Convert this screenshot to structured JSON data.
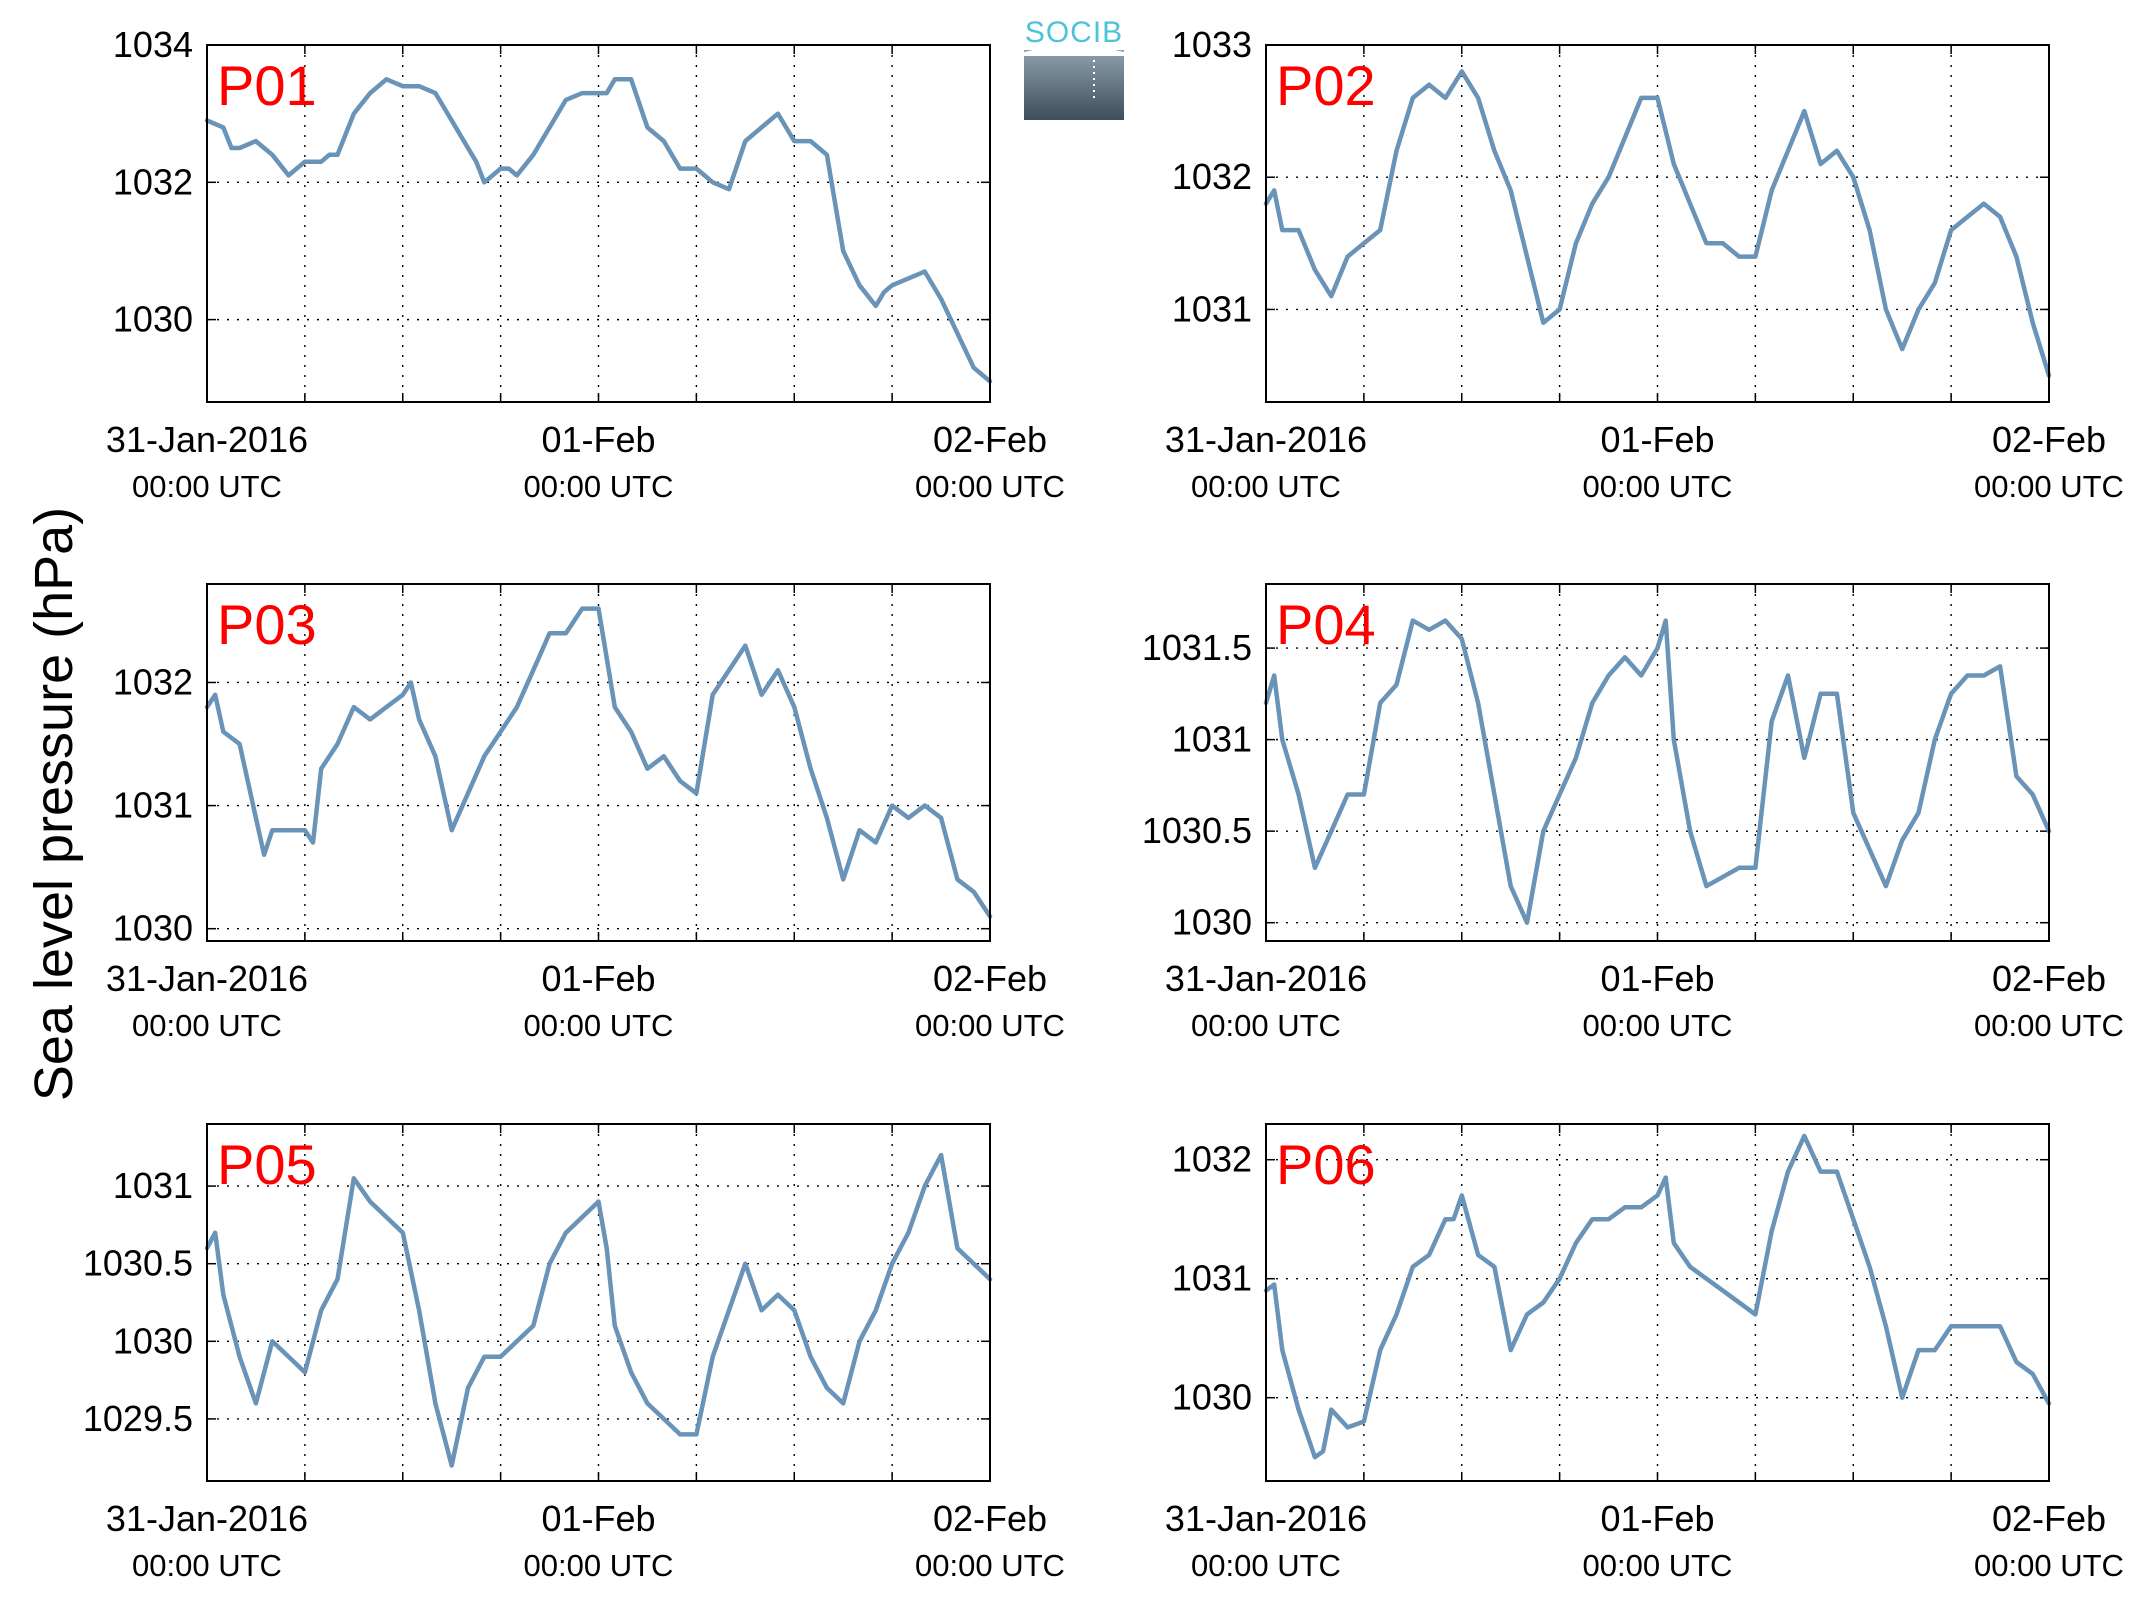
{
  "figure": {
    "ylabel": "Sea level pressure (hPa)",
    "logo_text": "SOCIB"
  },
  "colors": {
    "series": "#6a93b8",
    "panel_label": "#ff0000",
    "axis": "#000000"
  },
  "chart_data": [
    {
      "type": "line",
      "label": "P01",
      "xlim": [
        0,
        48
      ],
      "ylim": [
        1028.8,
        1034
      ],
      "yticks": [
        1030,
        1032,
        1034
      ],
      "xticks": [
        {
          "x": 0,
          "line1": "31-Jan-2016",
          "line2": "00:00 UTC"
        },
        {
          "x": 24,
          "line1": "01-Feb",
          "line2": "00:00 UTC"
        },
        {
          "x": 48,
          "line1": "02-Feb",
          "line2": "00:00 UTC"
        }
      ],
      "xminor": [
        6,
        12,
        18,
        30,
        36,
        42
      ],
      "x": [
        0,
        1,
        1.5,
        2,
        3,
        3.5,
        4,
        5,
        6,
        7,
        7.5,
        8,
        9,
        10,
        11,
        12,
        13,
        14,
        15,
        16,
        16.5,
        17,
        18,
        18.5,
        19,
        20,
        21,
        22,
        23,
        24,
        24.5,
        25,
        26,
        27,
        28,
        29,
        30,
        30.5,
        31,
        32,
        33,
        34,
        34.5,
        35,
        36,
        37,
        38,
        39,
        40,
        41,
        41.5,
        42,
        43,
        44,
        45,
        46,
        47,
        48
      ],
      "values": [
        1032.9,
        1032.8,
        1032.5,
        1032.5,
        1032.6,
        1032.5,
        1032.4,
        1032.1,
        1032.3,
        1032.3,
        1032.4,
        1032.4,
        1033.0,
        1033.3,
        1033.5,
        1033.4,
        1033.4,
        1033.3,
        1032.9,
        1032.5,
        1032.3,
        1032.0,
        1032.2,
        1032.2,
        1032.1,
        1032.4,
        1032.8,
        1033.2,
        1033.3,
        1033.3,
        1033.3,
        1033.5,
        1033.5,
        1032.8,
        1032.6,
        1032.2,
        1032.2,
        1032.1,
        1032.0,
        1031.9,
        1032.6,
        1032.8,
        1032.9,
        1033.0,
        1032.6,
        1032.6,
        1032.4,
        1031.0,
        1030.5,
        1030.2,
        1030.4,
        1030.5,
        1030.6,
        1030.7,
        1030.3,
        1029.8,
        1029.3,
        1029.1
      ]
    },
    {
      "type": "line",
      "label": "P02",
      "xlim": [
        0,
        48
      ],
      "ylim": [
        1030.3,
        1033
      ],
      "yticks": [
        1031,
        1032,
        1033
      ],
      "xticks": [
        {
          "x": 0,
          "line1": "31-Jan-2016",
          "line2": "00:00 UTC"
        },
        {
          "x": 24,
          "line1": "01-Feb",
          "line2": "00:00 UTC"
        },
        {
          "x": 48,
          "line1": "02-Feb",
          "line2": "00:00 UTC"
        }
      ],
      "xminor": [
        6,
        12,
        18,
        30,
        36,
        42
      ],
      "x": [
        0,
        0.5,
        1,
        2,
        3,
        4,
        5,
        6,
        7,
        8,
        9,
        10,
        11,
        11.5,
        12,
        13,
        14,
        15,
        16,
        17,
        18,
        19,
        20,
        21,
        22,
        23,
        24,
        25,
        26,
        27,
        28,
        29,
        30,
        31,
        32,
        33,
        34,
        35,
        36,
        37,
        38,
        39,
        40,
        41,
        42,
        43,
        44,
        45,
        46,
        47,
        48
      ],
      "values": [
        1031.8,
        1031.9,
        1031.6,
        1031.6,
        1031.3,
        1031.1,
        1031.4,
        1031.5,
        1031.6,
        1032.2,
        1032.6,
        1032.7,
        1032.6,
        1032.7,
        1032.8,
        1032.6,
        1032.2,
        1031.9,
        1031.4,
        1030.9,
        1031.0,
        1031.5,
        1031.8,
        1032.0,
        1032.3,
        1032.6,
        1032.6,
        1032.1,
        1031.8,
        1031.5,
        1031.5,
        1031.4,
        1031.4,
        1031.9,
        1032.2,
        1032.5,
        1032.1,
        1032.2,
        1032.0,
        1031.6,
        1031.0,
        1030.7,
        1031.0,
        1031.2,
        1031.6,
        1031.7,
        1031.8,
        1031.7,
        1031.4,
        1030.9,
        1030.5
      ]
    },
    {
      "type": "line",
      "label": "P03",
      "xlim": [
        0,
        48
      ],
      "ylim": [
        1029.9,
        1032.8
      ],
      "yticks": [
        1030,
        1031,
        1032
      ],
      "xticks": [
        {
          "x": 0,
          "line1": "31-Jan-2016",
          "line2": "00:00 UTC"
        },
        {
          "x": 24,
          "line1": "01-Feb",
          "line2": "00:00 UTC"
        },
        {
          "x": 48,
          "line1": "02-Feb",
          "line2": "00:00 UTC"
        }
      ],
      "xminor": [
        6,
        12,
        18,
        30,
        36,
        42
      ],
      "x": [
        0,
        0.5,
        1,
        2,
        3,
        3.5,
        4,
        5,
        6,
        6.5,
        7,
        8,
        9,
        10,
        11,
        12,
        12.5,
        13,
        14,
        15,
        16,
        17,
        18,
        19,
        20,
        21,
        22,
        23,
        24,
        24.5,
        25,
        26,
        27,
        28,
        29,
        30,
        31,
        32,
        33,
        34,
        35,
        36,
        37,
        38,
        39,
        40,
        41,
        42,
        43,
        44,
        45,
        46,
        47,
        48
      ],
      "values": [
        1031.8,
        1031.9,
        1031.6,
        1031.5,
        1030.9,
        1030.6,
        1030.8,
        1030.8,
        1030.8,
        1030.7,
        1031.3,
        1031.5,
        1031.8,
        1031.7,
        1031.8,
        1031.9,
        1032.0,
        1031.7,
        1031.4,
        1030.8,
        1031.1,
        1031.4,
        1031.6,
        1031.8,
        1032.1,
        1032.4,
        1032.4,
        1032.6,
        1032.6,
        1032.2,
        1031.8,
        1031.6,
        1031.3,
        1031.4,
        1031.2,
        1031.1,
        1031.9,
        1032.1,
        1032.3,
        1031.9,
        1032.1,
        1031.8,
        1031.3,
        1030.9,
        1030.4,
        1030.8,
        1030.7,
        1031.0,
        1030.9,
        1031.0,
        1030.9,
        1030.4,
        1030.3,
        1030.1
      ]
    },
    {
      "type": "line",
      "label": "P04",
      "xlim": [
        0,
        48
      ],
      "ylim": [
        1029.9,
        1031.85
      ],
      "yticks": [
        1030,
        1030.5,
        1031,
        1031.5
      ],
      "xticks": [
        {
          "x": 0,
          "line1": "31-Jan-2016",
          "line2": "00:00 UTC"
        },
        {
          "x": 24,
          "line1": "01-Feb",
          "line2": "00:00 UTC"
        },
        {
          "x": 48,
          "line1": "02-Feb",
          "line2": "00:00 UTC"
        }
      ],
      "xminor": [
        6,
        12,
        18,
        30,
        36,
        42
      ],
      "x": [
        0,
        0.5,
        1,
        2,
        3,
        4,
        5,
        6,
        7,
        8,
        9,
        10,
        11,
        12,
        13,
        14,
        15,
        16,
        17,
        18,
        18.5,
        19,
        20,
        21,
        22,
        23,
        24,
        24.5,
        25,
        26,
        27,
        28,
        29,
        30,
        31,
        32,
        33,
        34,
        35,
        36,
        37,
        38,
        39,
        40,
        41,
        42,
        43,
        44,
        45,
        46,
        47,
        48
      ],
      "values": [
        1031.2,
        1031.35,
        1031.0,
        1030.7,
        1030.3,
        1030.5,
        1030.7,
        1030.7,
        1031.2,
        1031.3,
        1031.65,
        1031.6,
        1031.65,
        1031.55,
        1031.2,
        1030.7,
        1030.2,
        1030.0,
        1030.5,
        1030.7,
        1030.8,
        1030.9,
        1031.2,
        1031.35,
        1031.45,
        1031.35,
        1031.5,
        1031.65,
        1031.0,
        1030.5,
        1030.2,
        1030.25,
        1030.3,
        1030.3,
        1031.1,
        1031.35,
        1030.9,
        1031.25,
        1031.25,
        1030.6,
        1030.4,
        1030.2,
        1030.45,
        1030.6,
        1031.0,
        1031.25,
        1031.35,
        1031.35,
        1031.4,
        1030.8,
        1030.7,
        1030.5
      ]
    },
    {
      "type": "line",
      "label": "P05",
      "xlim": [
        0,
        48
      ],
      "ylim": [
        1029.1,
        1031.4
      ],
      "yticks": [
        1029.5,
        1030,
        1030.5,
        1031
      ],
      "xticks": [
        {
          "x": 0,
          "line1": "31-Jan-2016",
          "line2": "00:00 UTC"
        },
        {
          "x": 24,
          "line1": "01-Feb",
          "line2": "00:00 UTC"
        },
        {
          "x": 48,
          "line1": "02-Feb",
          "line2": "00:00 UTC"
        }
      ],
      "xminor": [
        6,
        12,
        18,
        30,
        36,
        42
      ],
      "x": [
        0,
        0.5,
        1,
        2,
        3,
        4,
        5,
        6,
        7,
        8,
        9,
        10,
        11,
        12,
        13,
        14,
        15,
        16,
        17,
        18,
        19,
        20,
        21,
        22,
        23,
        24,
        24.5,
        25,
        26,
        27,
        28,
        29,
        30,
        31,
        32,
        33,
        34,
        35,
        36,
        37,
        38,
        39,
        40,
        41,
        42,
        43,
        44,
        45,
        46,
        47,
        48
      ],
      "values": [
        1030.6,
        1030.7,
        1030.3,
        1029.9,
        1029.6,
        1030.0,
        1029.9,
        1029.8,
        1030.2,
        1030.4,
        1031.05,
        1030.9,
        1030.8,
        1030.7,
        1030.2,
        1029.6,
        1029.2,
        1029.7,
        1029.9,
        1029.9,
        1030.0,
        1030.1,
        1030.5,
        1030.7,
        1030.8,
        1030.9,
        1030.6,
        1030.1,
        1029.8,
        1029.6,
        1029.5,
        1029.4,
        1029.4,
        1029.9,
        1030.2,
        1030.5,
        1030.2,
        1030.3,
        1030.2,
        1029.9,
        1029.7,
        1029.6,
        1030.0,
        1030.2,
        1030.5,
        1030.7,
        1031.0,
        1031.2,
        1030.6,
        1030.5,
        1030.4
      ]
    },
    {
      "type": "line",
      "label": "P06",
      "xlim": [
        0,
        48
      ],
      "ylim": [
        1029.3,
        1032.3
      ],
      "yticks": [
        1030,
        1031,
        1032
      ],
      "xticks": [
        {
          "x": 0,
          "line1": "31-Jan-2016",
          "line2": "00:00 UTC"
        },
        {
          "x": 24,
          "line1": "01-Feb",
          "line2": "00:00 UTC"
        },
        {
          "x": 48,
          "line1": "02-Feb",
          "line2": "00:00 UTC"
        }
      ],
      "xminor": [
        6,
        12,
        18,
        30,
        36,
        42
      ],
      "x": [
        0,
        0.5,
        1,
        2,
        3,
        3.5,
        4,
        5,
        6,
        7,
        8,
        9,
        10,
        11,
        11.5,
        12,
        13,
        14,
        15,
        16,
        17,
        18,
        19,
        20,
        21,
        22,
        23,
        24,
        24.5,
        25,
        26,
        27,
        28,
        29,
        30,
        31,
        32,
        33,
        34,
        35,
        36,
        37,
        38,
        39,
        40,
        41,
        42,
        43,
        44,
        45,
        46,
        47,
        48
      ],
      "values": [
        1030.9,
        1030.95,
        1030.4,
        1029.9,
        1029.5,
        1029.55,
        1029.9,
        1029.75,
        1029.8,
        1030.4,
        1030.7,
        1031.1,
        1031.2,
        1031.5,
        1031.5,
        1031.7,
        1031.2,
        1031.1,
        1030.4,
        1030.7,
        1030.8,
        1031.0,
        1031.3,
        1031.5,
        1031.5,
        1031.6,
        1031.6,
        1031.7,
        1031.85,
        1031.3,
        1031.1,
        1031.0,
        1030.9,
        1030.8,
        1030.7,
        1031.4,
        1031.9,
        1032.2,
        1031.9,
        1031.9,
        1031.5,
        1031.1,
        1030.6,
        1030.0,
        1030.4,
        1030.4,
        1030.6,
        1030.6,
        1030.6,
        1030.6,
        1030.3,
        1030.2,
        1029.95
      ]
    }
  ]
}
